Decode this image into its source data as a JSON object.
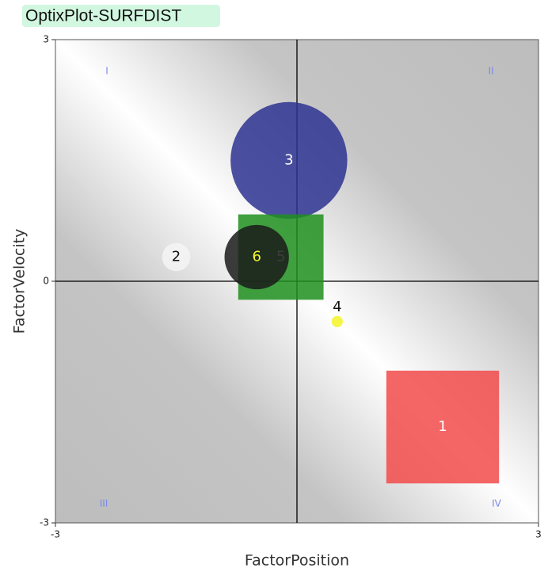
{
  "chart_data": {
    "type": "bubble",
    "title": "OptixPlot-SURFDIST",
    "x_label": "FactorPosition",
    "y_label": "FactorVelocity",
    "xlim": [
      -3,
      3
    ],
    "ylim": [
      -3,
      3
    ],
    "xticks": [
      -3,
      3
    ],
    "yticks": [
      3,
      0,
      -3
    ],
    "quadrants": [
      "I",
      "II",
      "III",
      "IV"
    ],
    "labels": [
      "1",
      "2",
      "3",
      "4",
      "5",
      "6"
    ],
    "x": [
      1.81,
      -1.5,
      -0.1,
      0.5,
      -0.2,
      -0.5
    ],
    "values": [
      -1.81,
      0.3,
      1.5,
      -0.5,
      0.3,
      0.3
    ],
    "sizes": [
      1.4,
      0.35,
      1.45,
      0.14,
      1.06,
      0.8
    ],
    "shapes": [
      "square",
      "circle",
      "circle",
      "circle",
      "square",
      "circle"
    ],
    "colors": [
      "#f24a4a",
      "#f4f4f4",
      "#2e3390",
      "#f5f52a",
      "#1f8f1f",
      "#1a1a1a"
    ],
    "label_colors": [
      "#ffffff",
      "#111111",
      "#ffffff",
      "#111111",
      "#ffffff",
      "#f5f52a"
    ]
  }
}
